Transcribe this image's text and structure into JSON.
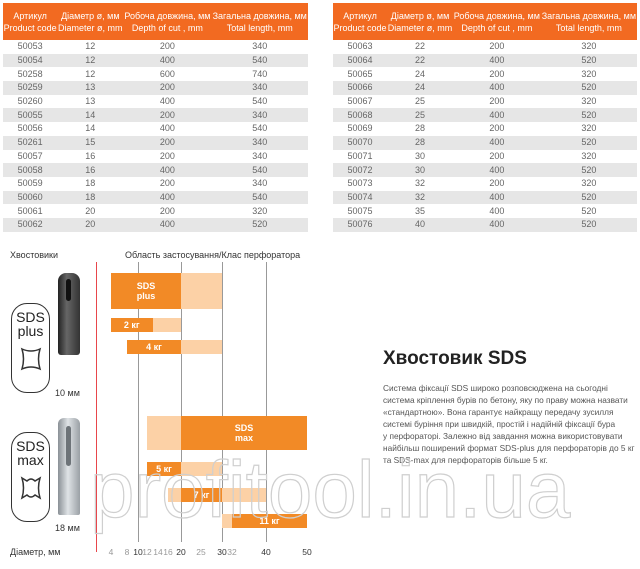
{
  "table_headers": [
    "Артикул\nProduct code",
    "Діаметр ø, мм\nDiameter ø, mm",
    "Робоча довжина, мм\nDepth of cut , mm",
    "Загальна довжина, мм\nTotal length, mm"
  ],
  "table_left": [
    [
      "50053",
      "12",
      "200",
      "340"
    ],
    [
      "50054",
      "12",
      "400",
      "540"
    ],
    [
      "50258",
      "12",
      "600",
      "740"
    ],
    [
      "50259",
      "13",
      "200",
      "340"
    ],
    [
      "50260",
      "13",
      "400",
      "540"
    ],
    [
      "50055",
      "14",
      "200",
      "340"
    ],
    [
      "50056",
      "14",
      "400",
      "540"
    ],
    [
      "50261",
      "15",
      "200",
      "340"
    ],
    [
      "50057",
      "16",
      "200",
      "340"
    ],
    [
      "50058",
      "16",
      "400",
      "540"
    ],
    [
      "50059",
      "18",
      "200",
      "340"
    ],
    [
      "50060",
      "18",
      "400",
      "540"
    ],
    [
      "50061",
      "20",
      "200",
      "320"
    ],
    [
      "50062",
      "20",
      "400",
      "520"
    ]
  ],
  "table_right": [
    [
      "50063",
      "22",
      "200",
      "320"
    ],
    [
      "50064",
      "22",
      "400",
      "520"
    ],
    [
      "50065",
      "24",
      "200",
      "320"
    ],
    [
      "50066",
      "24",
      "400",
      "520"
    ],
    [
      "50067",
      "25",
      "200",
      "320"
    ],
    [
      "50068",
      "25",
      "400",
      "520"
    ],
    [
      "50069",
      "28",
      "200",
      "320"
    ],
    [
      "50070",
      "28",
      "400",
      "520"
    ],
    [
      "50071",
      "30",
      "200",
      "320"
    ],
    [
      "50072",
      "30",
      "400",
      "520"
    ],
    [
      "50073",
      "32",
      "200",
      "320"
    ],
    [
      "50074",
      "32",
      "400",
      "520"
    ],
    [
      "50075",
      "35",
      "400",
      "520"
    ],
    [
      "50076",
      "40",
      "400",
      "520"
    ]
  ],
  "chart_labels": {
    "shanks": "Хвостовики",
    "application": "Область застосування/Клас перфоратора",
    "diameter": "Діаметр, мм",
    "plus_size": "10 мм",
    "max_size": "18 мм",
    "plus_logo": [
      "SDS",
      "plus"
    ],
    "max_logo": [
      "SDS",
      "max"
    ]
  },
  "chart_data": {
    "type": "bar",
    "orientation": "horizontal-range",
    "ticks": [
      4,
      8,
      10,
      12,
      14,
      16,
      20,
      25,
      30,
      32,
      40,
      50
    ],
    "bold_ticks": [
      10,
      20,
      30,
      40,
      50
    ],
    "grid": [
      10,
      20,
      30,
      40
    ],
    "bars": [
      {
        "label": "SDS\nplus",
        "segments": [
          {
            "from": 4,
            "to": 20,
            "tone": "dark"
          },
          {
            "from": 20,
            "to": 30,
            "tone": "light"
          }
        ]
      },
      {
        "label": "2 кг",
        "segments": [
          {
            "from": 4,
            "to": 13,
            "tone": "dark"
          },
          {
            "from": 13,
            "to": 20,
            "tone": "light"
          }
        ]
      },
      {
        "label": "4 кг",
        "segments": [
          {
            "from": 8,
            "to": 20,
            "tone": "dark"
          },
          {
            "from": 20,
            "to": 30,
            "tone": "light"
          }
        ]
      },
      {
        "label": "SDS\nmax",
        "segments": [
          {
            "from": 12,
            "to": 20,
            "tone": "light"
          },
          {
            "from": 20,
            "to": 50,
            "tone": "dark"
          }
        ]
      },
      {
        "label": "5 кг",
        "segments": [
          {
            "from": 12,
            "to": 20,
            "tone": "dark"
          },
          {
            "from": 20,
            "to": 30,
            "tone": "light"
          }
        ]
      },
      {
        "label": "7 кг",
        "segments": [
          {
            "from": 16,
            "to": 20,
            "tone": "light"
          },
          {
            "from": 20,
            "to": 30,
            "tone": "dark"
          },
          {
            "from": 30,
            "to": 40,
            "tone": "light"
          }
        ]
      },
      {
        "label": "11 кг",
        "segments": [
          {
            "from": 30,
            "to": 32,
            "tone": "light"
          },
          {
            "from": 32,
            "to": 50,
            "tone": "dark"
          }
        ]
      }
    ]
  },
  "colors": {
    "orange": "#f26a21",
    "bar_dark": "#f28a26",
    "bar_light": "#fcd1a6",
    "zero_line": "#e8464b"
  },
  "article": {
    "title": "Хвостовик SDS",
    "lines": [
      "Система фіксації SDS широко розповсюджена на сьогодні",
      "система кріплення бурів по бетону, яку по праву можна назвати",
      "«стандартною». Вона гарантує найкращу передачу зусилля",
      "системі буріння при швидкій, простій і надійній фіксації бура",
      "у перфораторі. Залежно від завдання можна використовувати",
      "найбільш поширений формат SDS-plus для перфораторів до 5 кг",
      "та SDS-max для перфораторів більше 5 кг."
    ]
  },
  "watermark": "profitool.in.ua"
}
